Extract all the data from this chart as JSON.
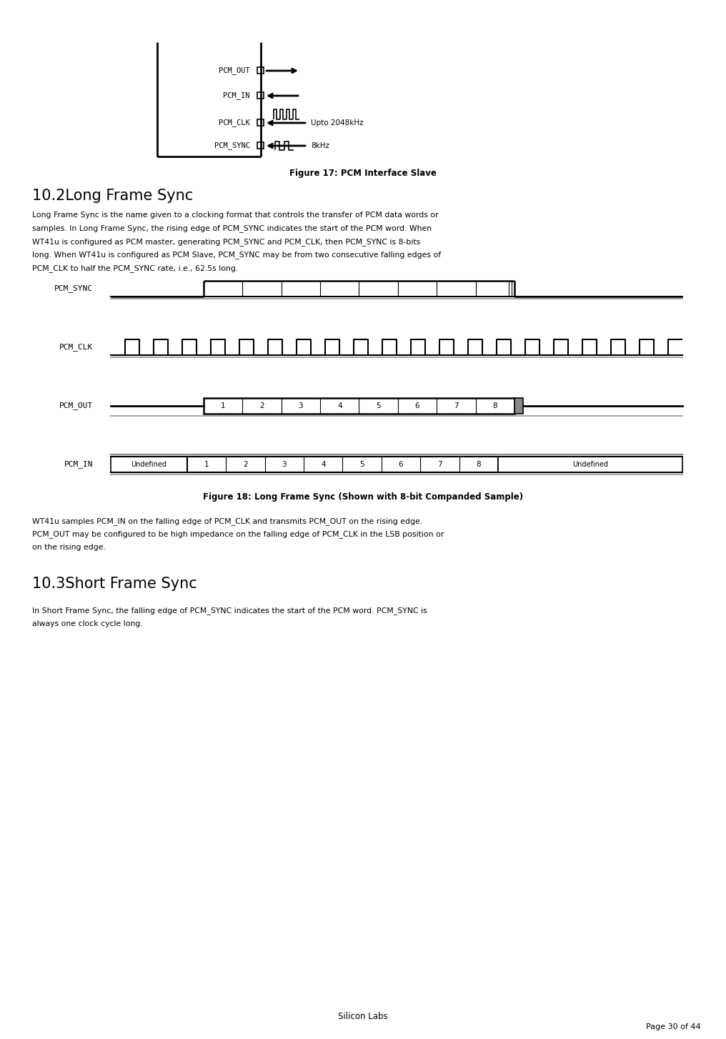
{
  "page_width": 10.16,
  "page_height": 14.54,
  "bg_color": "#ffffff",
  "text_color": "#000000",
  "fig17_caption": "Figure 17: PCM Interface Slave",
  "fig18_caption": "Figure 18: Long Frame Sync (Shown with 8-bit Companded Sample)",
  "section_title": "10.2Long Frame Sync",
  "section_title2": "10.3Short Frame Sync",
  "para1": "Long Frame Sync is the name given to a clocking format that controls the transfer of PCM data words or\nsamples. In Long Frame Sync, the rising edge of PCM_SYNC indicates the start of the PCM word. When\nWT41u is configured as PCM master, generating PCM_SYNC and PCM_CLK, then PCM_SYNC is 8-bits\nlong. When WT41u is configured as PCM Slave, PCM_SYNC may be from two consecutive falling edges of\nPCM_CLK to half the PCM_SYNC rate, i.e., 62.5s long.",
  "para2": "WT41u samples PCM_IN on the falling edge of PCM_CLK and transmits PCM_OUT on the rising edge.\nPCM_OUT may be configured to be high impedance on the falling edge of PCM_CLK in the LSB position or\non the rising edge.",
  "para3": "In Short Frame Sync, the falling edge of PCM_SYNC indicates the start of the PCM word. PCM_SYNC is\nalways one clock cycle long.",
  "footer_center": "Silicon Labs",
  "footer_right": "Page 30 of 44",
  "pcm_signals": [
    "PCM_OUT",
    "PCM_IN",
    "PCM_CLK",
    "PCM_SYNC"
  ],
  "clk_label": "Upto 2048kHz",
  "sync_label": "8kHz"
}
